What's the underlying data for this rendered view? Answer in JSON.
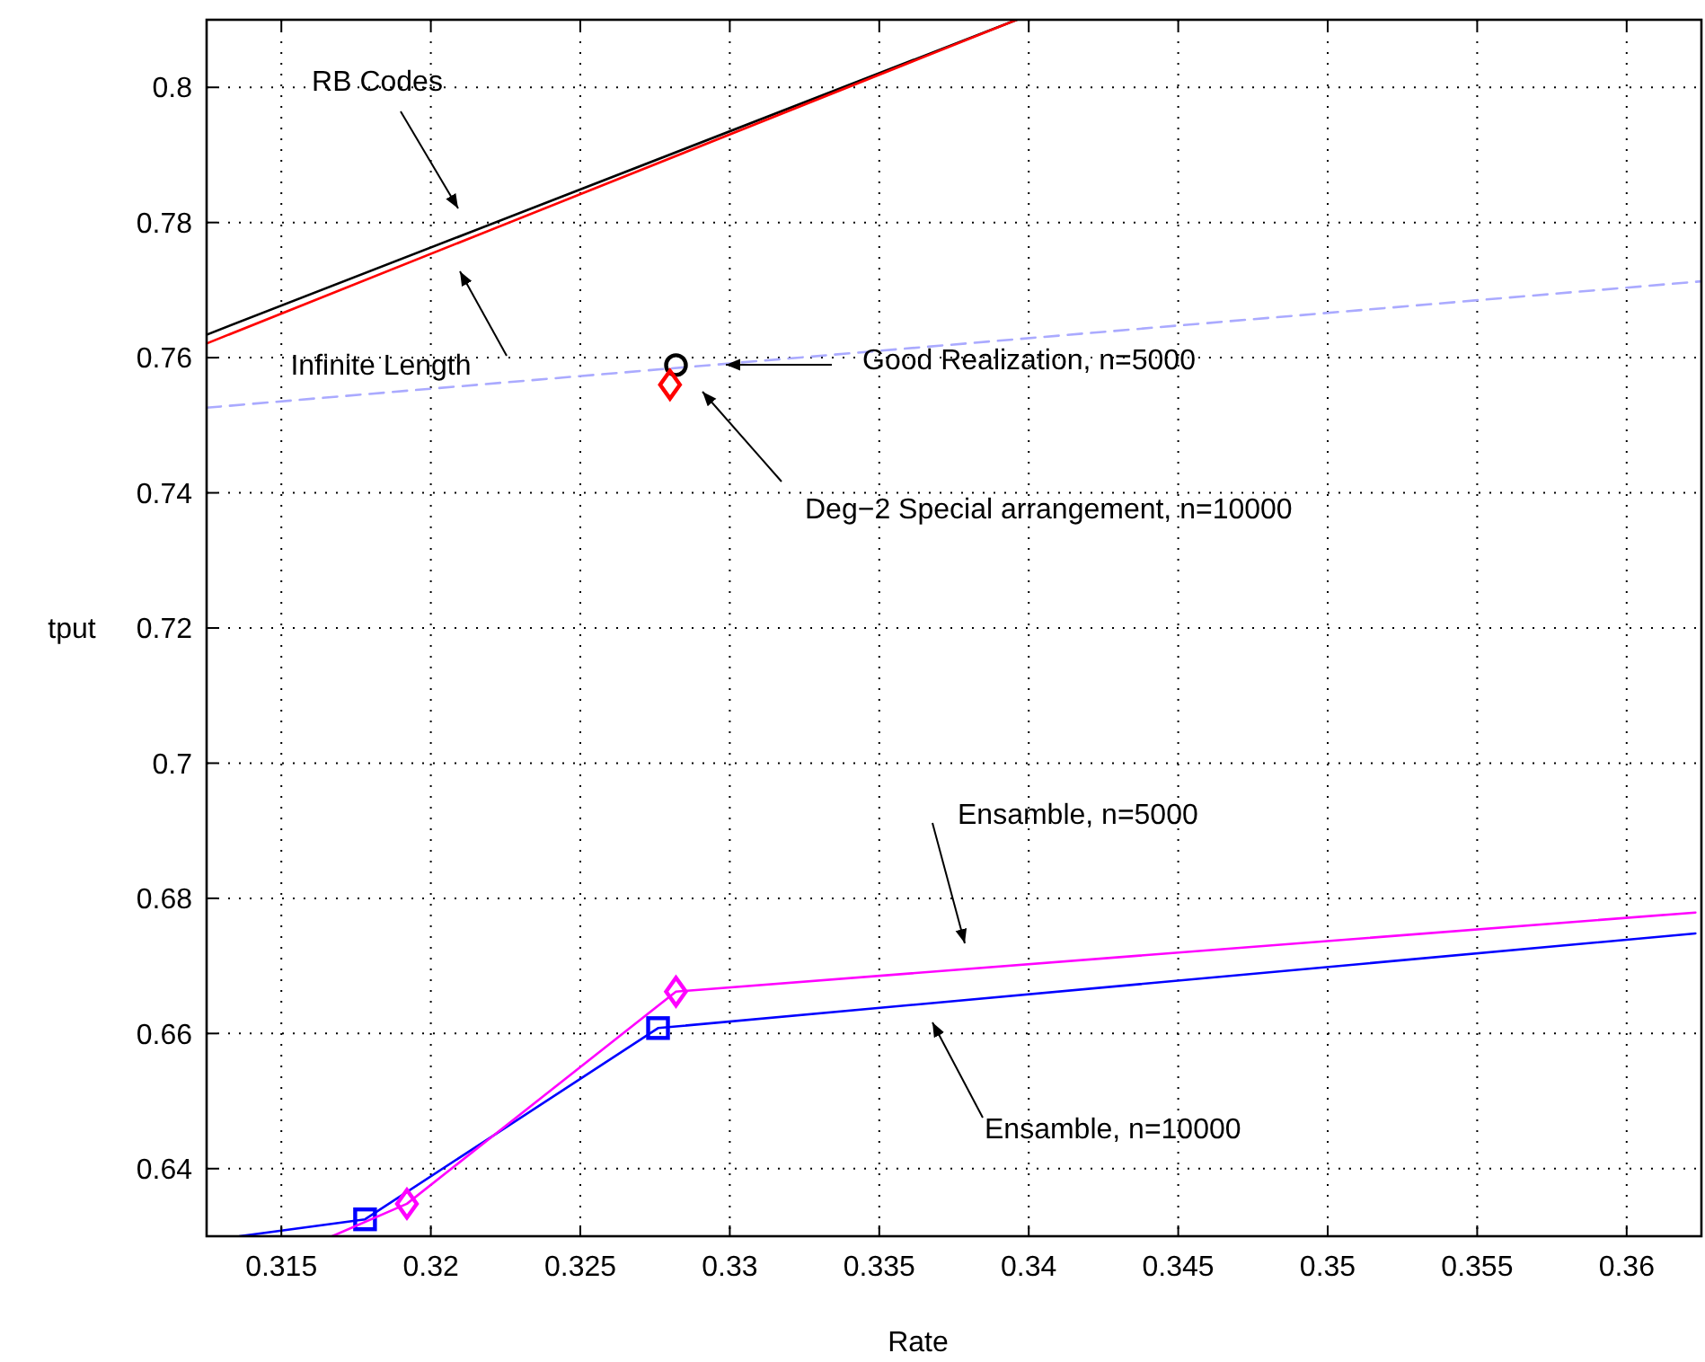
{
  "chart_data": {
    "type": "line",
    "xlabel": "Rate",
    "ylabel": "tput",
    "xlim": [
      0.3125,
      0.3625
    ],
    "ylim": [
      0.63,
      0.81
    ],
    "xticks": [
      0.315,
      0.32,
      0.325,
      0.33,
      0.335,
      0.34,
      0.345,
      0.35,
      0.355,
      0.36
    ],
    "yticks": [
      0.64,
      0.66,
      0.68,
      0.7,
      0.72,
      0.74,
      0.76,
      0.78,
      0.8
    ],
    "grid": true,
    "series": [
      {
        "type": "line",
        "color": "#000000",
        "x": [
          0.3125,
          0.3396
        ],
        "values": [
          0.7634,
          0.81
        ],
        "line_style": "solid",
        "marker": "none"
      },
      {
        "type": "line",
        "color": "#ff0000",
        "x": [
          0.3125,
          0.3396
        ],
        "values": [
          0.7621,
          0.81
        ],
        "line_style": "solid",
        "marker": "none"
      },
      {
        "type": "line",
        "color": "#aaaaff",
        "x": [
          0.3125,
          0.3625
        ],
        "values": [
          0.7526,
          0.7713
        ],
        "line_style": "dashed",
        "marker": "none"
      },
      {
        "type": "scatter",
        "color": "#000000",
        "x": [
          0.3282
        ],
        "values": [
          0.7589
        ],
        "marker": "circle"
      },
      {
        "type": "scatter",
        "color": "#ff0000",
        "x": [
          0.328
        ],
        "values": [
          0.756
        ],
        "marker": "diamond"
      },
      {
        "type": "line",
        "color": "#0000ff",
        "x": [
          0.3136,
          0.3178,
          0.3276,
          0.3623
        ],
        "values": [
          0.63,
          0.6325,
          0.6608,
          0.6748
        ],
        "line_style": "solid",
        "marker": "none"
      },
      {
        "type": "scatter",
        "color": "#0000ff",
        "x": [
          0.3178,
          0.3276
        ],
        "values": [
          0.6325,
          0.6608
        ],
        "marker": "square"
      },
      {
        "type": "line",
        "color": "#ff00ff",
        "x": [
          0.3167,
          0.3192,
          0.3282,
          0.3623
        ],
        "values": [
          0.63,
          0.6348,
          0.6662,
          0.6779
        ],
        "line_style": "solid",
        "marker": "none"
      },
      {
        "type": "scatter",
        "color": "#ff00ff",
        "x": [
          0.3192,
          0.3282
        ],
        "values": [
          0.6348,
          0.6662
        ],
        "marker": "diamond"
      }
    ],
    "annotations": [
      "RB Codes",
      "Infinite Length",
      "Good Realization, n=5000",
      "Deg−2 Special arrangement, n=10000",
      "Ensamble, n=5000",
      "Ensamble, n=10000"
    ]
  }
}
